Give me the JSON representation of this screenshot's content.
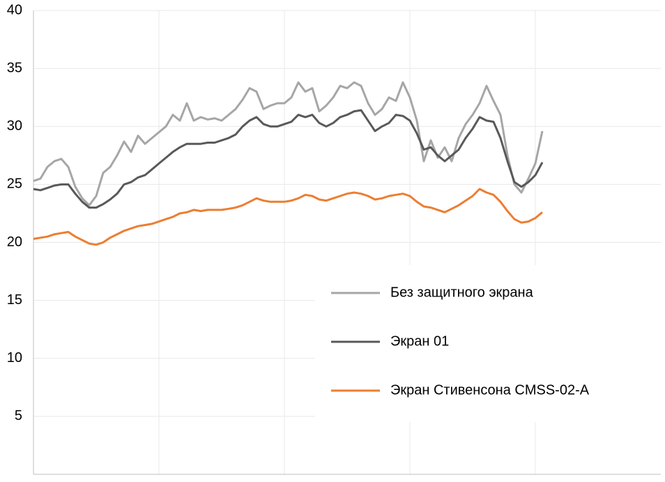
{
  "chart_data": {
    "type": "line",
    "categories": [
      null,
      null,
      null,
      null,
      null,
      null,
      null,
      null,
      null,
      null,
      null,
      null,
      null,
      null,
      null,
      null,
      null,
      null,
      null,
      null,
      null,
      null,
      null,
      null,
      null,
      null,
      null,
      null,
      null,
      null,
      null,
      null,
      null,
      null,
      null,
      null,
      null,
      null,
      null,
      null,
      null,
      null,
      null,
      null,
      null,
      null,
      null,
      null,
      null,
      null,
      null,
      null,
      null,
      null,
      null,
      null,
      null,
      null,
      null,
      null,
      null,
      null,
      null,
      null,
      null,
      null,
      null,
      null,
      null,
      null,
      null,
      null,
      null,
      null
    ],
    "series": [
      {
        "name": "Без защитного экрана",
        "color": "#a6a6a6",
        "values": [
          25.3,
          25.5,
          26.5,
          27,
          27.2,
          26.5,
          24.8,
          23.8,
          23.2,
          24,
          26,
          26.5,
          27.5,
          28.7,
          27.8,
          29.2,
          28.5,
          29,
          29.5,
          30,
          31,
          30.5,
          32,
          30.5,
          30.8,
          30.6,
          30.7,
          30.5,
          31,
          31.5,
          32.3,
          33.3,
          33,
          31.5,
          31.8,
          32,
          32,
          32.5,
          33.8,
          33,
          33.3,
          31.3,
          31.8,
          32.5,
          33.5,
          33.3,
          33.8,
          33.5,
          32,
          31,
          31.5,
          32.5,
          32.2,
          33.8,
          32.5,
          30.5,
          27,
          28.8,
          27.3,
          28.2,
          27,
          29,
          30.2,
          31,
          32,
          33.5,
          32.2,
          31,
          27.5,
          25,
          24.3,
          25.5,
          26.8,
          29.6
        ]
      },
      {
        "name": "Экран 01",
        "color": "#595959",
        "values": [
          24.6,
          24.5,
          24.7,
          24.9,
          25,
          25,
          24.2,
          23.5,
          23,
          23,
          23.3,
          23.7,
          24.2,
          25,
          25.2,
          25.6,
          25.8,
          26.3,
          26.8,
          27.3,
          27.8,
          28.2,
          28.5,
          28.5,
          28.5,
          28.6,
          28.6,
          28.8,
          29,
          29.3,
          30,
          30.5,
          30.8,
          30.2,
          30,
          30,
          30.2,
          30.4,
          31,
          30.8,
          31,
          30.3,
          30,
          30.3,
          30.8,
          31,
          31.3,
          31.4,
          30.5,
          29.6,
          30,
          30.3,
          31,
          30.9,
          30.5,
          29.4,
          28,
          28.2,
          27.5,
          27,
          27.5,
          28,
          29,
          29.8,
          30.8,
          30.5,
          30.4,
          29,
          27,
          25.2,
          24.8,
          25.2,
          25.8,
          26.9
        ]
      },
      {
        "name": "Экран Стивенсона CMSS-02-A",
        "color": "#ed7d31",
        "values": [
          20.3,
          20.4,
          20.5,
          20.7,
          20.8,
          20.9,
          20.5,
          20.2,
          19.9,
          19.8,
          20,
          20.4,
          20.7,
          21,
          21.2,
          21.4,
          21.5,
          21.6,
          21.8,
          22,
          22.2,
          22.5,
          22.6,
          22.8,
          22.7,
          22.8,
          22.8,
          22.8,
          22.9,
          23,
          23.2,
          23.5,
          23.8,
          23.6,
          23.5,
          23.5,
          23.5,
          23.6,
          23.8,
          24.1,
          24,
          23.7,
          23.6,
          23.8,
          24,
          24.2,
          24.3,
          24.2,
          24,
          23.7,
          23.8,
          24,
          24.1,
          24.2,
          24,
          23.5,
          23.1,
          23,
          22.8,
          22.6,
          22.9,
          23.2,
          23.6,
          24,
          24.6,
          24.3,
          24.1,
          23.5,
          22.7,
          22,
          21.7,
          21.8,
          22.1,
          22.6
        ]
      }
    ],
    "ylim": [
      0,
      40
    ],
    "yticks": [
      5,
      10,
      15,
      20,
      25,
      30,
      35,
      40
    ],
    "grid": true,
    "legend": "right"
  }
}
